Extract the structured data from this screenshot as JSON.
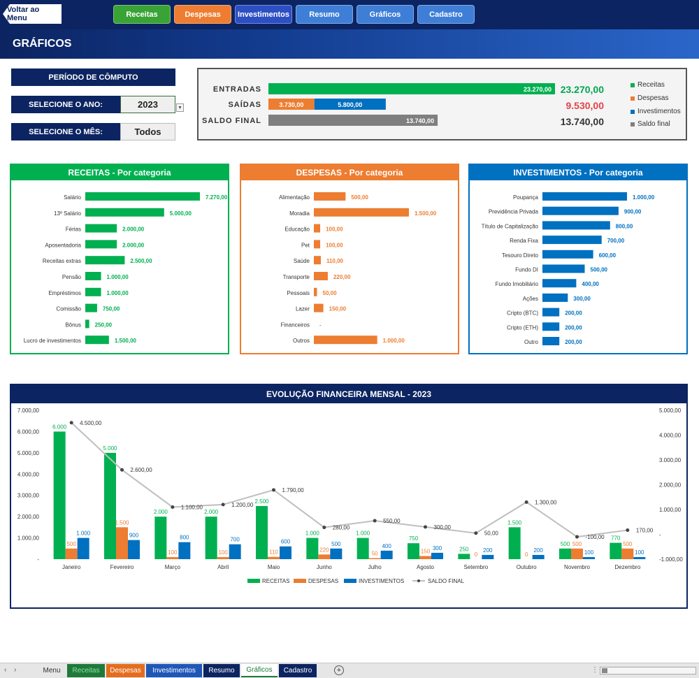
{
  "nav": {
    "back_label": "Voltar ao Menu",
    "buttons": [
      {
        "label": "Receitas",
        "color": "#3aa336"
      },
      {
        "label": "Despesas",
        "color": "#ee7d31"
      },
      {
        "label": "Investimentos",
        "color": "#2d4fc4"
      },
      {
        "label": "Resumo",
        "color": "#3f7ed6"
      },
      {
        "label": "Gráficos",
        "color": "#3f7ed6"
      },
      {
        "label": "Cadastro",
        "color": "#3f7ed6"
      }
    ]
  },
  "page_title": "GRÁFICOS",
  "selectors": {
    "period_label": "PERÍODO DE CÔMPUTO",
    "year_label": "SELECIONE O ANO:",
    "year_value": "2023",
    "month_label": "SELECIONE O MÊS:",
    "month_value": "Todos"
  },
  "colors": {
    "receitas": "#00b050",
    "despesas": "#ed7d31",
    "investimentos": "#0070c0",
    "saldo": "#7f7f7f",
    "navy": "#0c2461"
  },
  "summary": {
    "rows": [
      {
        "label": "ENTRADAS",
        "segments": [
          {
            "value": 23270,
            "text": "23.270,00",
            "color": "#00b050"
          }
        ],
        "total": "23.270,00",
        "total_color": "#00a650"
      },
      {
        "label": "SAÍDAS",
        "segments": [
          {
            "value": 3730,
            "text": "3.730,00",
            "color": "#ed7d31"
          },
          {
            "value": 5800,
            "text": "5.800,00",
            "color": "#0070c0"
          }
        ],
        "total": "9.530,00",
        "total_color": "#e0434a"
      },
      {
        "label": "SALDO FINAL",
        "segments": [
          {
            "value": 13740,
            "text": "13.740,00",
            "color": "#7f7f7f"
          }
        ],
        "total": "13.740,00",
        "total_color": "#333333"
      }
    ],
    "legend": [
      {
        "label": "Receitas",
        "color": "#00b050"
      },
      {
        "label": "Despesas",
        "color": "#ed7d31"
      },
      {
        "label": "Investimentos",
        "color": "#0070c0"
      },
      {
        "label": "Saldo final",
        "color": "#7f7f7f"
      }
    ]
  },
  "chart_data": [
    {
      "type": "bar",
      "title": "RECEITAS - Por categoria",
      "color": "#00b050",
      "categories": [
        "Salário",
        "13º Salário",
        "Férias",
        "Aposentadoria",
        "Receitas extras",
        "Pensão",
        "Empréstimos",
        "Comissão",
        "Bônus",
        "Lucro de investimentos"
      ],
      "values": [
        7270,
        5000,
        2000,
        2000,
        2500,
        1000,
        1000,
        750,
        250,
        1500
      ],
      "labels": [
        "7.270,00",
        "5.000,00",
        "2.000,00",
        "2.000,00",
        "2.500,00",
        "1.000,00",
        "1.000,00",
        "750,00",
        "250,00",
        "1.500,00"
      ]
    },
    {
      "type": "bar",
      "title": "DESPESAS - Por categoria",
      "color": "#ed7d31",
      "categories": [
        "Alimentação",
        "Moradia",
        "Educação",
        "Pet",
        "Saúde",
        "Transporte",
        "Pessoais",
        "Lazer",
        "Financeiros",
        "Outros"
      ],
      "values": [
        500,
        1500,
        100,
        100,
        110,
        220,
        50,
        150,
        0,
        1000
      ],
      "labels": [
        "500,00",
        "1.500,00",
        "100,00",
        "100,00",
        "110,00",
        "220,00",
        "50,00",
        "150,00",
        "-",
        "1.000,00"
      ]
    },
    {
      "type": "bar",
      "title": "INVESTIMENTOS - Por categoria",
      "color": "#0070c0",
      "categories": [
        "Poupança",
        "Previdência Privada",
        "Título de Capitalização",
        "Renda Fixa",
        "Tesouro Direto",
        "Fundo DI",
        "Fundo Imobiliário",
        "Ações",
        "Cripto (BTC)",
        "Cripto (ETH)",
        "Outro"
      ],
      "values": [
        1000,
        900,
        800,
        700,
        600,
        500,
        400,
        300,
        200,
        200,
        200
      ],
      "labels": [
        "1.000,00",
        "900,00",
        "800,00",
        "700,00",
        "600,00",
        "500,00",
        "400,00",
        "300,00",
        "200,00",
        "200,00",
        "200,00"
      ]
    },
    {
      "type": "bar",
      "title": "EVOLUÇÃO FINANCEIRA MENSAL - 2023",
      "categories": [
        "Janeiro",
        "Fevereiro",
        "Março",
        "Abril",
        "Maio",
        "Junho",
        "Julho",
        "Agosto",
        "Setembro",
        "Outubro",
        "Novembro",
        "Dezembro"
      ],
      "ylim": [
        0,
        7000
      ],
      "y2lim": [
        -1000,
        5000
      ],
      "y_ticks": [
        "-",
        "1.000,00",
        "2.000,00",
        "3.000,00",
        "4.000,00",
        "5.000,00",
        "6.000,00",
        "7.000,00"
      ],
      "y2_ticks": [
        "-1.000,00",
        "-",
        "1.000,00",
        "2.000,00",
        "3.000,00",
        "4.000,00",
        "5.000,00"
      ],
      "series": [
        {
          "name": "RECEITAS",
          "type": "bar",
          "color": "#00b050",
          "values": [
            6000,
            5000,
            2000,
            2000,
            2500,
            1000,
            1000,
            750,
            250,
            1500,
            500,
            770
          ],
          "labels": [
            "6.000",
            "5.000",
            "2.000",
            "2.000",
            "2.500",
            "1.000",
            "1.000",
            "750",
            "250",
            "1.500",
            "500",
            "770"
          ]
        },
        {
          "name": "DESPESAS",
          "type": "bar",
          "color": "#ed7d31",
          "values": [
            500,
            1500,
            100,
            100,
            110,
            220,
            50,
            150,
            0,
            0,
            500,
            500
          ],
          "labels": [
            "500",
            "1.500",
            "100",
            "100",
            "110",
            "220",
            "50",
            "150",
            "0",
            "0",
            "500",
            "500"
          ]
        },
        {
          "name": "INVESTIMENTOS",
          "type": "bar",
          "color": "#0070c0",
          "values": [
            1000,
            900,
            800,
            700,
            600,
            500,
            400,
            300,
            200,
            200,
            100,
            100
          ],
          "labels": [
            "1.000",
            "900",
            "800",
            "700",
            "600",
            "500",
            "400",
            "300",
            "200",
            "200",
            "100",
            "100"
          ]
        },
        {
          "name": "SALDO FINAL",
          "type": "line",
          "axis": "right",
          "color": "#bfbfbf",
          "values": [
            4500,
            2600,
            1100,
            1200,
            1790,
            280,
            550,
            300,
            50,
            1300,
            -100,
            170
          ],
          "labels": [
            "4.500,00",
            "2.600,00",
            "1.100,00",
            "1.200,00",
            "1.790,00",
            "280,00",
            "550,00",
            "300,00",
            "50,00",
            "1.300,00",
            "-100,00",
            "170,00"
          ]
        }
      ],
      "legend_position": "bottom"
    }
  ],
  "tabs": {
    "items": [
      {
        "label": "Menu",
        "bg": "#e6e6e6",
        "color": "#333333"
      },
      {
        "label": "Receitas",
        "bg": "#1f7a3a",
        "color": "#8fe0a0"
      },
      {
        "label": "Despesas",
        "bg": "#e56d1f",
        "color": "#ffffff"
      },
      {
        "label": "Investimentos",
        "bg": "#1f57b8",
        "color": "#ffffff"
      },
      {
        "label": "Resumo",
        "bg": "#0c2461",
        "color": "#ffffff"
      },
      {
        "label": "Gráficos",
        "bg": "#ffffff",
        "color": "#1f7a3a"
      },
      {
        "label": "Cadastro",
        "bg": "#0c2461",
        "color": "#ffffff"
      }
    ]
  }
}
